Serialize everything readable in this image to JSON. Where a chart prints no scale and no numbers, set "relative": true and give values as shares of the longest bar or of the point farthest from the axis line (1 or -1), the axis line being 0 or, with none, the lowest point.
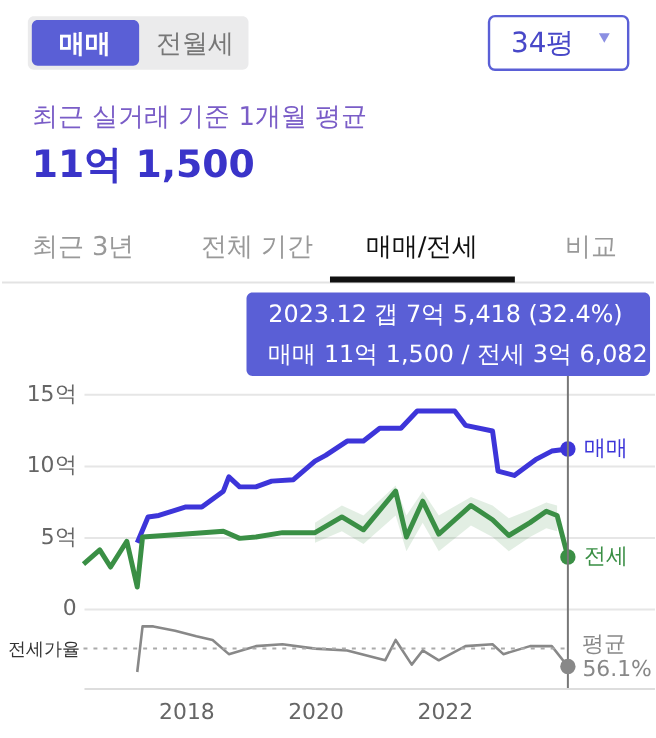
{
  "chart_data": [
    {
      "type": "line",
      "title": "11억 1,500",
      "subtitle": "최근 실거래 기준 1개월 평균",
      "annotations": [
        "매매",
        "전월세",
        "34평",
        "최근 3년",
        "전체 기간",
        "매매/전세",
        "비교",
        "2023.12  갭 7억 5,418 (32.4%)",
        "매매 11억 1,500 / 전세 3억 6,082"
      ],
      "xlim": [
        "2016-06",
        "2025-04"
      ],
      "xticks": [
        "2018",
        "2020",
        "2022"
      ],
      "ylim": [
        0,
        15
      ],
      "yticks": [
        0,
        {
          "value": 5,
          "label": "5억"
        },
        {
          "value": 10,
          "label": "10억"
        },
        {
          "value": 15,
          "label": "15억"
        }
      ],
      "grid": "y",
      "tick_labels": "y",
      "ref_lines": [
        {
          "axis": "x",
          "value": "2023-12",
          "color": "#777777"
        }
      ],
      "series": [
        {
          "name": "매매",
          "color": "#3d35d9",
          "x": [
            "2017-04",
            "2017-06",
            "2017-08",
            "2018-01",
            "2018-04",
            "2018-08",
            "2018-09",
            "2018-11",
            "2019-02",
            "2019-05",
            "2019-09",
            "2020-01",
            "2020-03",
            "2020-07",
            "2020-10",
            "2021-01",
            "2021-05",
            "2021-08",
            "2022-03",
            "2022-05",
            "2022-10",
            "2022-11",
            "2023-02",
            "2023-06",
            "2023-09",
            "2023-12"
          ],
          "values": [
            4.6,
            6.4,
            6.5,
            7.1,
            7.1,
            8.2,
            9.2,
            8.5,
            8.5,
            8.9,
            9.0,
            10.3,
            10.7,
            11.7,
            11.7,
            12.6,
            12.6,
            13.8,
            13.8,
            12.8,
            12.4,
            9.6,
            9.3,
            10.4,
            11.0,
            11.15
          ]
        },
        {
          "name": "전세",
          "color": "#3a8f45",
          "x": [
            "2016-06",
            "2016-09",
            "2016-11",
            "2017-02",
            "2017-04",
            "2017-05",
            "2018-01",
            "2018-08",
            "2018-11",
            "2019-02",
            "2019-07",
            "2020-01",
            "2020-06",
            "2020-10",
            "2021-04",
            "2021-06",
            "2021-09",
            "2021-12",
            "2022-06",
            "2022-10",
            "2023-01",
            "2023-05",
            "2023-08",
            "2023-10",
            "2023-12"
          ],
          "values": [
            3.1,
            4.1,
            2.9,
            4.7,
            1.5,
            5.0,
            5.2,
            5.4,
            4.9,
            5.0,
            5.3,
            5.3,
            6.4,
            5.5,
            8.2,
            5.0,
            7.5,
            5.2,
            7.2,
            6.2,
            5.1,
            6.0,
            6.8,
            6.5,
            3.6
          ],
          "lower": [
            null,
            null,
            null,
            null,
            null,
            null,
            null,
            null,
            null,
            null,
            null,
            4.6,
            5.4,
            4.5,
            6.5,
            4.0,
            6.0,
            4.0,
            5.8,
            5.0,
            4.0,
            5.0,
            5.6,
            5.4,
            null
          ],
          "upper": [
            null,
            null,
            null,
            null,
            null,
            null,
            null,
            null,
            null,
            null,
            null,
            6.0,
            7.2,
            6.5,
            8.6,
            6.5,
            8.2,
            6.5,
            7.8,
            7.2,
            6.3,
            6.9,
            7.4,
            7.2,
            null
          ]
        }
      ]
    },
    {
      "type": "line",
      "relative": true,
      "ylabel": "전세가율",
      "xlim": [
        "2016-06",
        "2025-04"
      ],
      "xticks": [
        "2018",
        "2020",
        "2022"
      ],
      "tick_labels": "x",
      "ref_lines": [
        {
          "axis": "y",
          "value": 0.64,
          "label": "평균 56.1%",
          "line_style": "dotted",
          "color": "#aaaaaa"
        }
      ],
      "series": [
        {
          "color": "#888888",
          "x": [
            "2017-04",
            "2017-05",
            "2017-07",
            "2017-11",
            "2018-03",
            "2018-06",
            "2018-09",
            "2019-02",
            "2019-07",
            "2020-01",
            "2020-07",
            "2021-02",
            "2021-04",
            "2021-07",
            "2021-09",
            "2021-12",
            "2022-05",
            "2022-10",
            "2022-12",
            "2023-05",
            "2023-09",
            "2023-12"
          ],
          "values": [
            0.26,
            1.0,
            1.0,
            0.93,
            0.84,
            0.78,
            0.55,
            0.68,
            0.71,
            0.64,
            0.61,
            0.45,
            0.78,
            0.38,
            0.61,
            0.45,
            0.68,
            0.71,
            0.55,
            0.68,
            0.68,
            0.35
          ]
        }
      ]
    }
  ]
}
